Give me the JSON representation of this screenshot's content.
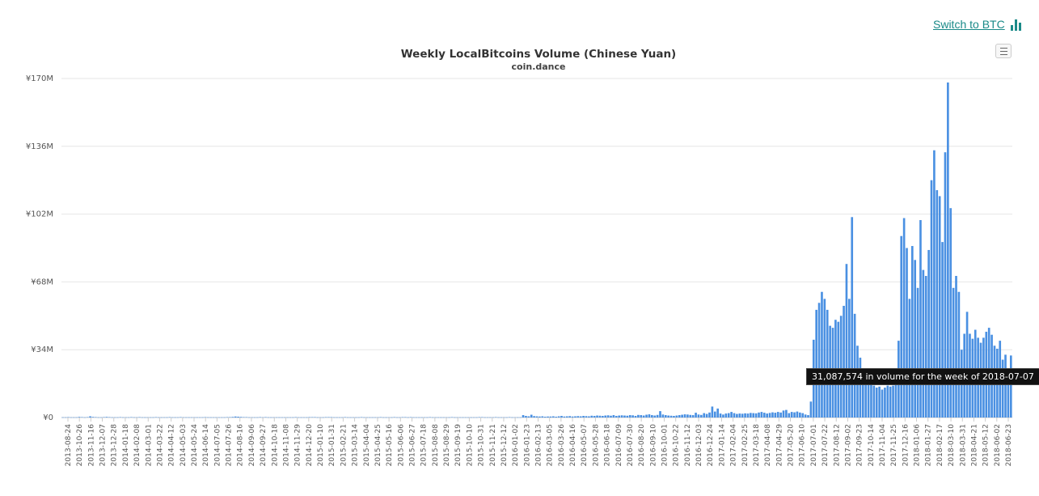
{
  "header": {
    "switch_label": "Switch to BTC",
    "switch_icon": "bar-chart-icon",
    "switch_color": "#1a8a88",
    "menu_icon": "hamburger-menu-icon"
  },
  "tooltip": {
    "text": "31,087,574 in volume for the week of 2018-07-07"
  },
  "chart_data": {
    "type": "bar",
    "title": "Weekly LocalBitcoins Volume (Chinese Yuan)",
    "subtitle": "coin.dance",
    "bar_color": "#4a90e2",
    "grid": true,
    "legend": "none",
    "ylim": [
      0,
      170000000
    ],
    "y_ticks": [
      {
        "value": 0,
        "label": "¥0"
      },
      {
        "value": 34000000,
        "label": "¥34M"
      },
      {
        "value": 68000000,
        "label": "¥68M"
      },
      {
        "value": 102000000,
        "label": "¥102M"
      },
      {
        "value": 136000000,
        "label": "¥136M"
      },
      {
        "value": 170000000,
        "label": "¥170M"
      }
    ],
    "x_tick_labels": [
      "2013-08-24",
      "2013-10-26",
      "2013-11-16",
      "2013-12-07",
      "2013-12-28",
      "2014-01-18",
      "2014-02-08",
      "2014-03-01",
      "2014-03-22",
      "2014-04-12",
      "2014-05-03",
      "2014-05-24",
      "2014-06-14",
      "2014-07-05",
      "2014-07-26",
      "2014-08-16",
      "2014-09-06",
      "2014-09-27",
      "2014-10-18",
      "2014-11-08",
      "2014-11-29",
      "2014-12-20",
      "2015-01-10",
      "2015-01-31",
      "2015-02-21",
      "2015-03-14",
      "2015-04-04",
      "2015-04-25",
      "2015-05-16",
      "2015-06-06",
      "2015-06-27",
      "2015-07-18",
      "2015-08-08",
      "2015-08-29",
      "2015-09-19",
      "2015-10-10",
      "2015-10-31",
      "2015-11-21",
      "2015-12-12",
      "2016-01-02",
      "2016-01-23",
      "2016-02-13",
      "2016-03-05",
      "2016-03-26",
      "2016-04-16",
      "2016-05-07",
      "2016-05-28",
      "2016-06-18",
      "2016-07-09",
      "2016-07-30",
      "2016-08-20",
      "2016-09-10",
      "2016-10-01",
      "2016-10-22",
      "2016-11-12",
      "2016-12-03",
      "2016-12-24",
      "2017-01-14",
      "2017-02-04",
      "2017-02-25",
      "2017-03-18",
      "2017-04-08",
      "2017-04-29",
      "2017-05-20",
      "2017-06-10",
      "2017-07-01",
      "2017-07-22",
      "2017-08-12",
      "2017-09-02",
      "2017-09-23",
      "2017-10-14",
      "2017-11-04",
      "2017-11-25",
      "2017-12-16",
      "2018-01-06",
      "2018-01-27",
      "2018-02-17",
      "2018-03-10",
      "2018-03-31",
      "2018-04-21",
      "2018-05-12",
      "2018-06-02",
      "2018-06-23"
    ],
    "values_millions": [
      0.1,
      0.1,
      0.2,
      0.1,
      0.1,
      0.1,
      0.3,
      0.2,
      0.1,
      0.2,
      0.6,
      0.3,
      0.2,
      0.1,
      0.1,
      0.2,
      0.3,
      0.2,
      0.1,
      0.1,
      0.1,
      0.2,
      0.1,
      0.1,
      0.1,
      0.2,
      0.1,
      0.1,
      0.2,
      0.1,
      0.1,
      0.1,
      0.1,
      0.1,
      0.2,
      0.1,
      0.1,
      0.1,
      0.1,
      0.2,
      0.1,
      0.1,
      0.1,
      0.2,
      0.1,
      0.1,
      0.1,
      0.1,
      0.1,
      0.1,
      0.1,
      0.1,
      0.2,
      0.1,
      0.1,
      0.1,
      0.1,
      0.1,
      0.1,
      0.1,
      0.2,
      0.2,
      0.3,
      0.5,
      0.4,
      0.3,
      0.2,
      0.2,
      0.1,
      0.1,
      0.1,
      0.1,
      0.2,
      0.1,
      0.2,
      0.1,
      0.1,
      0.1,
      0.1,
      0.1,
      0.1,
      0.1,
      0.1,
      0.1,
      0.1,
      0.2,
      0.1,
      0.1,
      0.1,
      0.1,
      0.2,
      0.2,
      0.2,
      0.1,
      0.1,
      0.1,
      0.2,
      0.2,
      0.2,
      0.1,
      0.1,
      0.1,
      0.1,
      0.2,
      0.1,
      0.1,
      0.1,
      0.1,
      0.1,
      0.2,
      0.1,
      0.1,
      0.1,
      0.1,
      0.1,
      0.1,
      0.2,
      0.1,
      0.1,
      0.1,
      0.1,
      0.2,
      0.1,
      0.1,
      0.2,
      0.2,
      0.1,
      0.2,
      0.1,
      0.1,
      0.1,
      0.1,
      0.1,
      0.1,
      0.2,
      0.1,
      0.1,
      0.1,
      0.1,
      0.1,
      0.1,
      0.1,
      0.2,
      0.1,
      0.1,
      0.1,
      0.1,
      0.1,
      0.1,
      0.1,
      0.1,
      0.1,
      0.2,
      0.2,
      0.1,
      0.1,
      0.1,
      0.1,
      0.2,
      0.1,
      0.1,
      0.1,
      0.1,
      0.2,
      0.1,
      0.1,
      0.1,
      0.1,
      1.2,
      0.8,
      0.6,
      1.4,
      0.7,
      0.6,
      0.5,
      0.6,
      0.4,
      0.5,
      0.5,
      0.6,
      0.4,
      0.6,
      0.8,
      0.5,
      0.6,
      0.7,
      0.5,
      0.6,
      0.7,
      0.6,
      0.8,
      0.7,
      0.6,
      0.9,
      0.8,
      1.0,
      0.9,
      0.8,
      1.0,
      1.1,
      0.9,
      1.2,
      0.8,
      1.0,
      1.1,
      1.0,
      0.9,
      1.2,
      1.1,
      0.8,
      1.3,
      1.2,
      1.0,
      1.4,
      1.6,
      1.2,
      1.0,
      1.3,
      3.2,
      1.5,
      1.2,
      1.0,
      0.9,
      0.8,
      1.0,
      1.2,
      1.4,
      1.6,
      1.5,
      1.3,
      1.2,
      2.4,
      1.5,
      1.3,
      2.2,
      1.8,
      2.5,
      5.5,
      3.0,
      4.5,
      2.0,
      1.5,
      2.0,
      2.2,
      2.8,
      2.2,
      1.8,
      2.0,
      1.9,
      2.1,
      2.0,
      2.3,
      2.2,
      2.1,
      2.5,
      2.8,
      2.4,
      2.0,
      2.3,
      2.6,
      2.4,
      2.8,
      2.5,
      3.5,
      3.8,
      2.2,
      2.8,
      2.6,
      3.0,
      2.5,
      2.2,
      1.5,
      1.2,
      8.0,
      39.0,
      54.0,
      57.5,
      63.0,
      59.5,
      54.0,
      46.0,
      45.0,
      49.0,
      48.0,
      51.0,
      56.0,
      77.0,
      59.5,
      100.5,
      52.0,
      36.0,
      30.0,
      24.0,
      22.0,
      20.0,
      18.0,
      16.0,
      15.0,
      15.5,
      14.0,
      15.0,
      16.0,
      15.5,
      16.0,
      17.0,
      38.5,
      91.0,
      100.0,
      85.0,
      59.5,
      86.0,
      79.0,
      65.0,
      99.0,
      74.0,
      71.0,
      84.0,
      119.0,
      134.0,
      114.0,
      111.0,
      88.0,
      133.0,
      168.0,
      105.0,
      65.0,
      71.0,
      63.0,
      34.0,
      42.0,
      53.0,
      42.0,
      39.5,
      44.0,
      40.0,
      37.5,
      40.0,
      43.0,
      45.0,
      41.5,
      36.0,
      34.5,
      38.5,
      29.0,
      31.5,
      24.5,
      31.1
    ]
  }
}
